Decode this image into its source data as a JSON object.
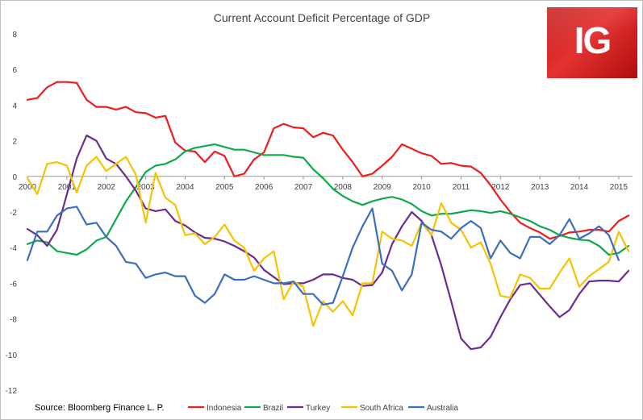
{
  "logo": {
    "text": "IG"
  },
  "source": "Source: Bloomberg Finance L. P.",
  "chart_data": {
    "type": "line",
    "title": "Current Account Deficit Percentage of GDP",
    "xlabel": "",
    "ylabel": "",
    "xlim": [
      2000,
      2015.35
    ],
    "ylim": [
      -12,
      8
    ],
    "yticks": [
      8,
      6,
      4,
      2,
      0,
      -2,
      -4,
      -6,
      -8,
      -10,
      -12
    ],
    "xticks": [
      "2000",
      "2001",
      "2002",
      "2003",
      "2004",
      "2005",
      "2006",
      "2007",
      "2008",
      "2009",
      "2010",
      "2011",
      "2012",
      "2013",
      "2014",
      "2015"
    ],
    "grid": false,
    "legend": "bottom",
    "series": [
      {
        "name": "Indonesia",
        "color": "#ee1c1c",
        "x": [
          2000,
          2000.25,
          2000.5,
          2000.75,
          2001,
          2001.25,
          2001.5,
          2001.75,
          2002,
          2002.25,
          2002.5,
          2002.75,
          2003,
          2003.25,
          2003.5,
          2003.75,
          2004,
          2004.25,
          2004.5,
          2004.75,
          2005,
          2005.25,
          2005.5,
          2005.75,
          2006,
          2006.25,
          2006.5,
          2006.75,
          2007,
          2007.25,
          2007.5,
          2007.75,
          2008,
          2008.25,
          2008.5,
          2008.75,
          2009,
          2009.25,
          2009.5,
          2009.75,
          2010,
          2010.25,
          2010.5,
          2010.75,
          2011,
          2011.25,
          2011.5,
          2011.75,
          2012,
          2012.25,
          2012.5,
          2012.75,
          2013,
          2013.25,
          2013.5,
          2013.75,
          2014,
          2014.25,
          2014.5,
          2014.75,
          2015,
          2015.25
        ],
        "values": [
          4.3,
          4.4,
          5.0,
          5.3,
          5.3,
          5.25,
          4.3,
          3.9,
          3.9,
          3.75,
          3.9,
          3.6,
          3.55,
          3.3,
          3.4,
          1.9,
          1.45,
          1.4,
          0.8,
          1.4,
          1.15,
          0.0,
          0.15,
          0.95,
          1.35,
          2.7,
          2.95,
          2.75,
          2.7,
          2.2,
          2.45,
          2.3,
          1.5,
          0.8,
          0.0,
          0.15,
          0.6,
          1.1,
          1.8,
          1.55,
          1.3,
          1.15,
          0.7,
          0.75,
          0.6,
          0.55,
          0.2,
          -0.5,
          -1.3,
          -2.0,
          -2.6,
          -2.9,
          -3.15,
          -3.5,
          -3.35,
          -3.15,
          -3.1,
          -3.0,
          -3.0,
          -3.1,
          -2.5,
          -2.2
        ]
      },
      {
        "name": "Brazil",
        "color": "#10a84a",
        "x": [
          2000,
          2000.25,
          2000.5,
          2000.75,
          2001,
          2001.25,
          2001.5,
          2001.75,
          2002,
          2002.25,
          2002.5,
          2002.75,
          2003,
          2003.25,
          2003.5,
          2003.75,
          2004,
          2004.25,
          2004.5,
          2004.75,
          2005,
          2005.25,
          2005.5,
          2005.75,
          2006,
          2006.25,
          2006.5,
          2006.75,
          2007,
          2007.25,
          2007.5,
          2007.75,
          2008,
          2008.25,
          2008.5,
          2008.75,
          2009,
          2009.25,
          2009.5,
          2009.75,
          2010,
          2010.25,
          2010.5,
          2010.75,
          2011,
          2011.25,
          2011.5,
          2011.75,
          2012,
          2012.25,
          2012.5,
          2012.75,
          2013,
          2013.25,
          2013.5,
          2013.75,
          2014,
          2014.25,
          2014.5,
          2014.75,
          2015,
          2015.25
        ],
        "values": [
          -3.8,
          -3.6,
          -3.7,
          -4.2,
          -4.3,
          -4.4,
          -4.1,
          -3.6,
          -3.4,
          -2.4,
          -1.4,
          -0.6,
          0.25,
          0.6,
          0.7,
          0.95,
          1.4,
          1.6,
          1.7,
          1.8,
          1.65,
          1.5,
          1.5,
          1.35,
          1.2,
          1.2,
          1.2,
          1.1,
          1.05,
          0.4,
          -0.1,
          -0.7,
          -1.1,
          -1.4,
          -1.6,
          -1.4,
          -1.25,
          -1.15,
          -1.3,
          -1.55,
          -1.95,
          -2.2,
          -2.1,
          -2.1,
          -2.0,
          -1.9,
          -1.95,
          -2.05,
          -1.95,
          -2.1,
          -2.3,
          -2.5,
          -2.8,
          -3.0,
          -3.3,
          -3.45,
          -3.55,
          -3.6,
          -3.9,
          -4.4,
          -4.3,
          -3.9
        ]
      },
      {
        "name": "Turkey",
        "color": "#6b2c91",
        "x": [
          2000,
          2000.25,
          2000.5,
          2000.75,
          2001,
          2001.25,
          2001.5,
          2001.75,
          2002,
          2002.25,
          2002.5,
          2002.75,
          2003,
          2003.25,
          2003.5,
          2003.75,
          2004,
          2004.25,
          2004.5,
          2004.75,
          2005,
          2005.25,
          2005.5,
          2005.75,
          2006,
          2006.25,
          2006.5,
          2006.75,
          2007,
          2007.25,
          2007.5,
          2007.75,
          2008,
          2008.25,
          2008.5,
          2008.75,
          2009,
          2009.25,
          2009.5,
          2009.75,
          2010,
          2010.25,
          2010.5,
          2010.75,
          2011,
          2011.25,
          2011.5,
          2011.75,
          2012,
          2012.25,
          2012.5,
          2012.75,
          2013,
          2013.25,
          2013.5,
          2013.75,
          2014,
          2014.25,
          2014.5,
          2014.75,
          2015,
          2015.25
        ],
        "values": [
          -2.95,
          -3.3,
          -3.9,
          -3.0,
          -1.0,
          1.0,
          2.3,
          2.0,
          1.0,
          0.7,
          0.0,
          -0.8,
          -1.8,
          -1.95,
          -1.85,
          -2.5,
          -2.75,
          -3.15,
          -3.45,
          -3.5,
          -3.65,
          -3.9,
          -4.2,
          -4.55,
          -5.25,
          -5.65,
          -6.05,
          -6.0,
          -6.0,
          -5.8,
          -5.5,
          -5.5,
          -5.7,
          -5.8,
          -6.15,
          -6.1,
          -5.4,
          -3.8,
          -2.8,
          -2.0,
          -2.5,
          -3.3,
          -5.0,
          -7.0,
          -9.1,
          -9.7,
          -9.6,
          -9.0,
          -7.9,
          -6.9,
          -6.1,
          -6.0,
          -6.65,
          -7.3,
          -7.9,
          -7.5,
          -6.6,
          -5.9,
          -5.85,
          -5.85,
          -5.9,
          -5.3
        ]
      },
      {
        "name": "South Africa",
        "color": "#f5c400",
        "x": [
          2000,
          2000.25,
          2000.5,
          2000.75,
          2001,
          2001.25,
          2001.5,
          2001.75,
          2002,
          2002.25,
          2002.5,
          2002.75,
          2003,
          2003.25,
          2003.5,
          2003.75,
          2004,
          2004.25,
          2004.5,
          2004.75,
          2005,
          2005.25,
          2005.5,
          2005.75,
          2006,
          2006.25,
          2006.5,
          2006.75,
          2007,
          2007.25,
          2007.5,
          2007.75,
          2008,
          2008.25,
          2008.5,
          2008.75,
          2009,
          2009.25,
          2009.5,
          2009.75,
          2010,
          2010.25,
          2010.5,
          2010.75,
          2011,
          2011.25,
          2011.5,
          2011.75,
          2012,
          2012.25,
          2012.5,
          2012.75,
          2013,
          2013.25,
          2013.5,
          2013.75,
          2014,
          2014.25,
          2014.5,
          2014.75,
          2015,
          2015.25
        ],
        "values": [
          -0.1,
          -1.0,
          0.7,
          0.8,
          0.6,
          -0.9,
          0.6,
          1.1,
          0.3,
          0.7,
          1.1,
          0.1,
          -2.6,
          0.2,
          -1.2,
          -1.6,
          -3.3,
          -3.2,
          -3.8,
          -3.4,
          -2.7,
          -3.6,
          -4.0,
          -5.3,
          -4.6,
          -4.2,
          -6.9,
          -5.9,
          -6.2,
          -8.4,
          -7.0,
          -7.6,
          -7.0,
          -7.8,
          -6.0,
          -6.0,
          -3.1,
          -3.5,
          -3.6,
          -3.9,
          -2.6,
          -3.3,
          -1.5,
          -2.6,
          -3.0,
          -4.0,
          -3.7,
          -4.9,
          -6.7,
          -6.8,
          -5.5,
          -5.7,
          -6.3,
          -6.3,
          -5.4,
          -4.6,
          -6.2,
          -5.6,
          -5.2,
          -4.8,
          -3.1,
          -4.2
        ]
      },
      {
        "name": "Australia",
        "color": "#3a6fbf",
        "x": [
          2000,
          2000.25,
          2000.5,
          2000.75,
          2001,
          2001.25,
          2001.5,
          2001.75,
          2002,
          2002.25,
          2002.5,
          2002.75,
          2003,
          2003.25,
          2003.5,
          2003.75,
          2004,
          2004.25,
          2004.5,
          2004.75,
          2005,
          2005.25,
          2005.5,
          2005.75,
          2006,
          2006.25,
          2006.5,
          2006.75,
          2007,
          2007.25,
          2007.5,
          2007.75,
          2008,
          2008.25,
          2008.5,
          2008.75,
          2009,
          2009.25,
          2009.5,
          2009.75,
          2010,
          2010.25,
          2010.5,
          2010.75,
          2011,
          2011.25,
          2011.5,
          2011.75,
          2012,
          2012.25,
          2012.5,
          2012.75,
          2013,
          2013.25,
          2013.5,
          2013.75,
          2014,
          2014.25,
          2014.5,
          2014.75,
          2015
        ],
        "values": [
          -4.7,
          -3.1,
          -3.1,
          -2.2,
          -1.8,
          -1.7,
          -2.7,
          -2.6,
          -3.4,
          -3.9,
          -4.8,
          -4.9,
          -5.7,
          -5.5,
          -5.4,
          -5.6,
          -5.6,
          -6.7,
          -7.1,
          -6.6,
          -5.5,
          -5.8,
          -5.8,
          -5.6,
          -5.8,
          -6.0,
          -6.0,
          -5.9,
          -6.6,
          -6.6,
          -7.2,
          -7.1,
          -5.6,
          -4.0,
          -2.8,
          -1.8,
          -4.9,
          -5.3,
          -6.4,
          -5.5,
          -2.6,
          -3.0,
          -3.1,
          -3.5,
          -2.9,
          -2.5,
          -2.9,
          -4.6,
          -3.6,
          -4.3,
          -4.6,
          -3.4,
          -3.4,
          -3.8,
          -3.3,
          -2.4,
          -3.5,
          -3.2,
          -2.8,
          -3.3,
          -4.7
        ]
      }
    ]
  }
}
